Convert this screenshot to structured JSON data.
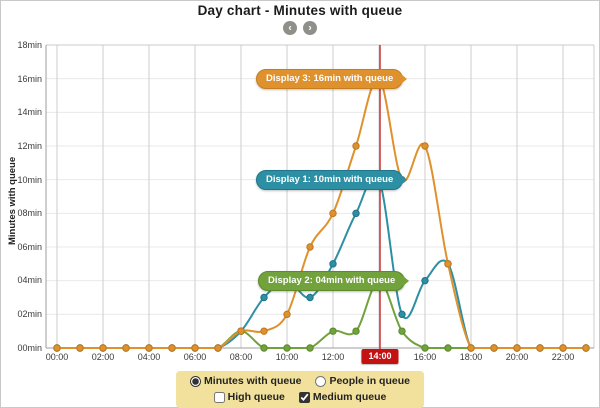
{
  "header": {
    "title": "Day chart - Minutes with queue",
    "prev_button": "‹",
    "next_button": "›"
  },
  "chart_data": {
    "type": "line",
    "title": "Day chart - Minutes with queue",
    "ylabel": "Minutes with queue",
    "ylim": [
      0,
      18
    ],
    "x_unit": "hour of day (value index = hour, 0-23)",
    "grid": true,
    "y_tick_labels": [
      "18min",
      "16min",
      "14min",
      "12min",
      "10min",
      "08min",
      "06min",
      "04min",
      "02min",
      "00min"
    ],
    "x_tick_labels": [
      "00:00",
      "02:00",
      "04:00",
      "06:00",
      "08:00",
      "10:00",
      "12:00",
      "14:00",
      "16:00",
      "18:00",
      "20:00",
      "22:00"
    ],
    "series": [
      {
        "name": "Display 3",
        "color": "#df912d",
        "marker_border": "#be7820",
        "values": [
          0,
          0,
          0,
          0,
          0,
          0,
          0,
          0,
          1,
          1,
          2,
          6,
          8,
          12,
          16,
          10,
          12,
          5,
          0,
          0,
          0,
          0,
          0,
          0
        ]
      },
      {
        "name": "Display 1",
        "color": "#2d8fa4",
        "marker_border": "#1e7387",
        "values": [
          0,
          0,
          0,
          0,
          0,
          0,
          0,
          0,
          1,
          3,
          4,
          3,
          5,
          8,
          10,
          2,
          4,
          5,
          0,
          0,
          0,
          0,
          0,
          0
        ]
      },
      {
        "name": "Display 2",
        "color": "#71a23c",
        "marker_border": "#5a8a2c",
        "values": [
          0,
          0,
          0,
          0,
          0,
          0,
          0,
          0,
          1,
          0,
          0,
          0,
          1,
          1,
          4,
          1,
          0,
          0,
          0,
          0,
          0,
          0,
          0,
          0
        ]
      }
    ],
    "cursor": {
      "hour": 14,
      "label": "14:00",
      "line_color": "#cc3333",
      "badge_color": "#c41212"
    },
    "annotations": [
      {
        "series": "Display 3",
        "text": "Display 3: 16min with queue",
        "color": "#df912d"
      },
      {
        "series": "Display 1",
        "text": "Display 1: 10min with queue",
        "color": "#2d8fa4"
      },
      {
        "series": "Display 2",
        "text": "Display 2: 04min with queue",
        "color": "#71a23c"
      }
    ],
    "legend_position": "none"
  },
  "footer": {
    "radios": [
      {
        "label": "Minutes with queue",
        "checked": true
      },
      {
        "label": "People in queue",
        "checked": false
      }
    ],
    "checkboxes": [
      {
        "label": "High queue",
        "checked": false
      },
      {
        "label": "Medium queue",
        "checked": true
      }
    ]
  }
}
